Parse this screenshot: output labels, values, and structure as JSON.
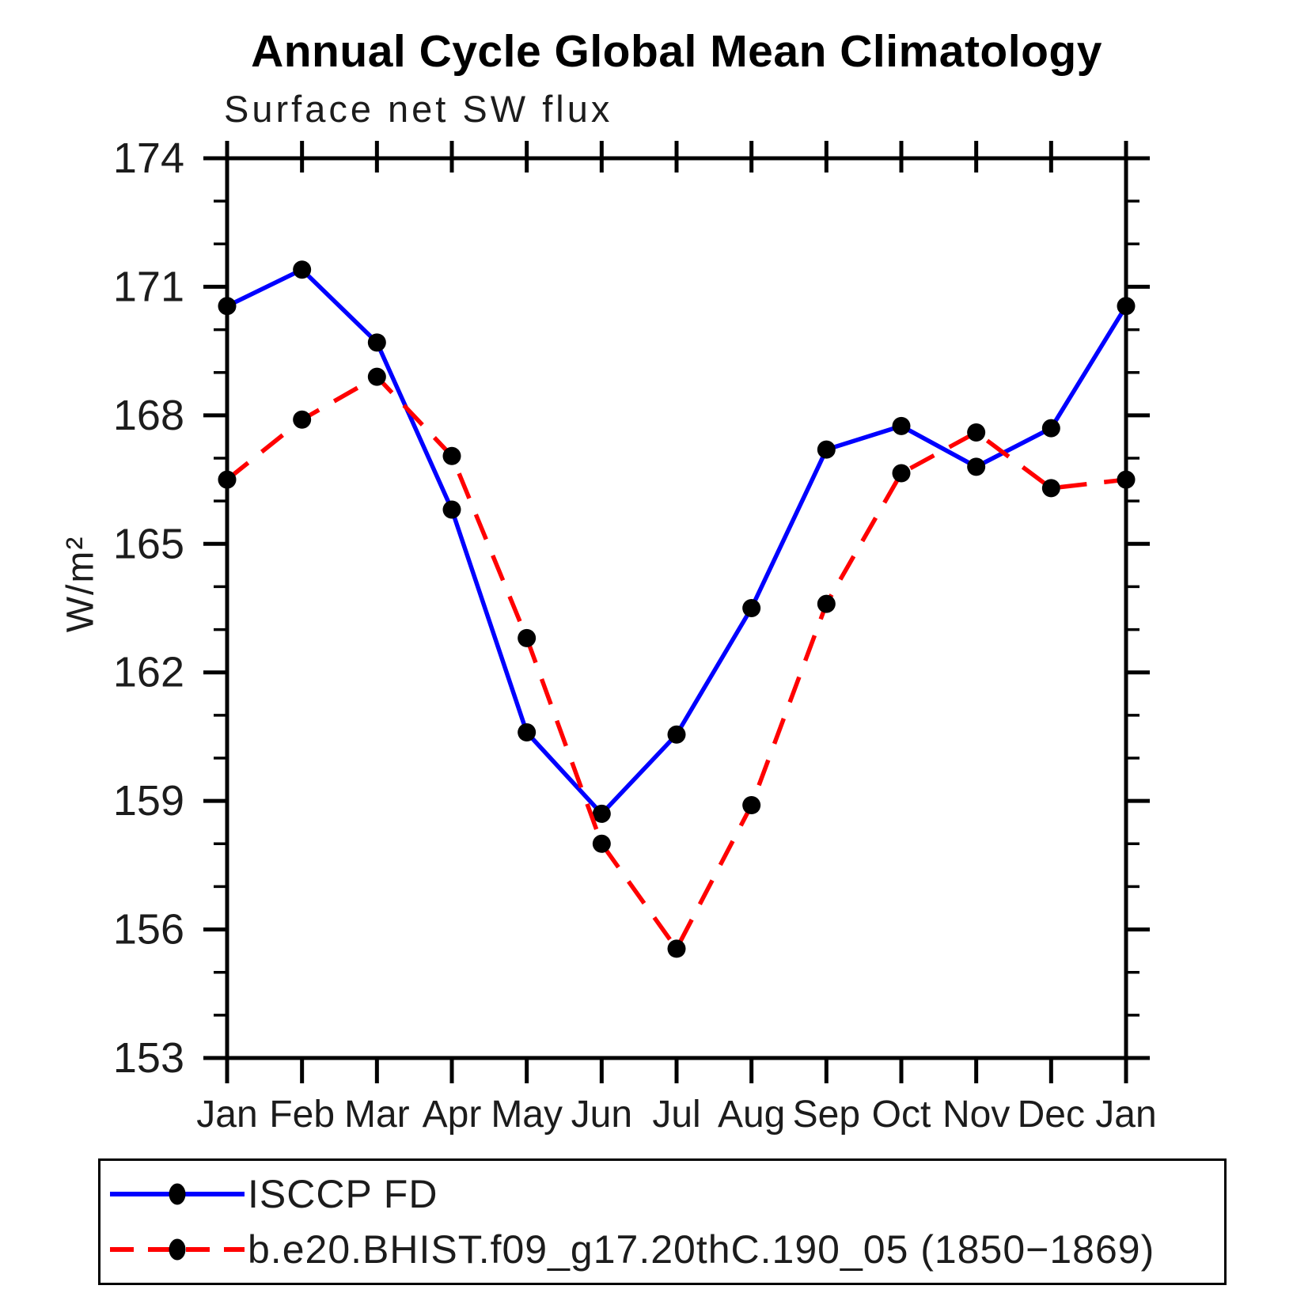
{
  "chart_data": {
    "type": "line",
    "title": "Annual Cycle Global Mean Climatology",
    "subtitle": "Surface net SW flux",
    "ylabel": "W/m²",
    "xlabel": "",
    "categories": [
      "Jan",
      "Feb",
      "Mar",
      "Apr",
      "May",
      "Jun",
      "Jul",
      "Aug",
      "Sep",
      "Oct",
      "Nov",
      "Dec",
      "Jan"
    ],
    "ylim": [
      153,
      174
    ],
    "ytick_major_interval": 3,
    "ytick_minor_interval": 1,
    "ytick_major_labels": [
      "174",
      "171",
      "168",
      "165",
      "162",
      "159",
      "156",
      "153"
    ],
    "grid": false,
    "legend_position": "bottom-left-box",
    "marker_color": "#000000",
    "axis_color": "#000000",
    "series": [
      {
        "name": "ISCCP FD",
        "color": "#0000ff",
        "style": "solid",
        "marker": "filled-circle",
        "values": [
          170.55,
          171.4,
          169.7,
          165.8,
          160.6,
          158.7,
          160.55,
          163.5,
          167.2,
          167.75,
          166.8,
          167.7,
          170.55
        ]
      },
      {
        "name": "b.e20.BHIST.f09_g17.20thC.190_05 (1850−1869)",
        "color": "#ff0000",
        "style": "dashed",
        "marker": "filled-circle",
        "values": [
          166.5,
          167.9,
          168.9,
          167.05,
          162.8,
          158.0,
          155.55,
          158.9,
          163.6,
          166.65,
          167.6,
          166.3,
          166.5
        ]
      }
    ]
  }
}
